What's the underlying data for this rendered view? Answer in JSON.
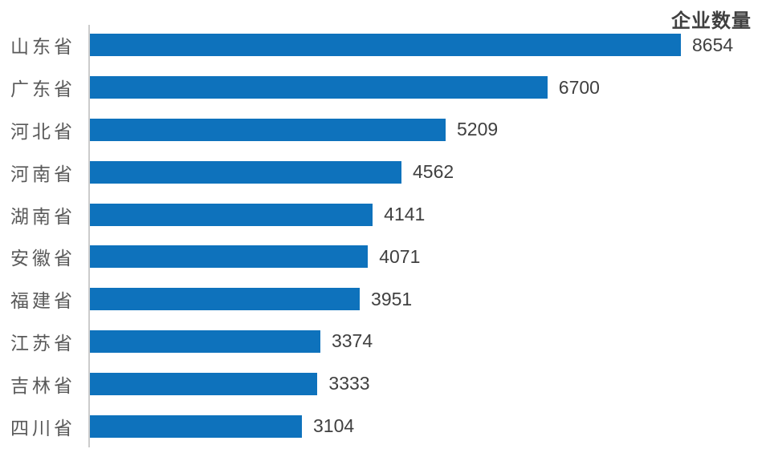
{
  "chart_data": {
    "type": "bar",
    "orientation": "horizontal",
    "title": "企业数量",
    "categories": [
      "山东省",
      "广东省",
      "河北省",
      "河南省",
      "湖南省",
      "安徽省",
      "福建省",
      "江苏省",
      "吉林省",
      "四川省"
    ],
    "values": [
      8654,
      6700,
      5209,
      4562,
      4141,
      4071,
      3951,
      3374,
      3333,
      3104
    ],
    "xlim": [
      0,
      8654
    ],
    "value_labels": "outside-end",
    "grid": false,
    "legend_position": "none",
    "colors": {
      "bar": "#0e72bc",
      "category_label": "#595959",
      "value_label": "#404040",
      "title": "#404040",
      "axis_line": "#cccccc",
      "background": "#ffffff"
    }
  }
}
